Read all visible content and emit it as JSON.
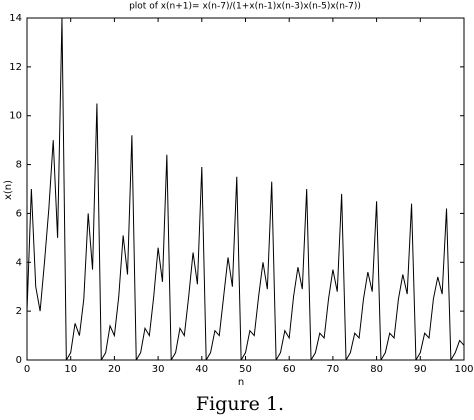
{
  "chart_data": {
    "type": "line",
    "title": "plot of x(n+1)= x(n-7)/(1+x(n-1)x(n-3)x(n-5)x(n-7))",
    "xlabel": "n",
    "ylabel": "x(n)",
    "caption": "Figure 1.",
    "x": [
      0,
      1,
      2,
      3,
      4,
      5,
      6,
      7,
      8,
      9,
      10,
      11,
      12,
      13,
      14,
      15,
      16,
      17,
      18,
      19,
      20,
      21,
      22,
      23,
      24,
      25,
      26,
      27,
      28,
      29,
      30,
      31,
      32,
      33,
      34,
      35,
      36,
      37,
      38,
      39,
      40,
      41,
      42,
      43,
      44,
      45,
      46,
      47,
      48,
      49,
      50,
      51,
      52,
      53,
      54,
      55,
      56,
      57,
      58,
      59,
      60,
      61,
      62,
      63,
      64,
      65,
      66,
      67,
      68,
      69,
      70,
      71,
      72,
      73,
      74,
      75,
      76,
      77,
      78,
      79,
      80,
      81,
      82,
      83,
      84,
      85,
      86,
      87,
      88,
      89,
      90,
      91,
      92,
      93,
      94,
      95,
      96,
      97,
      98,
      99,
      100
    ],
    "values": [
      2,
      7,
      3,
      2,
      4,
      6.2,
      9,
      5,
      14,
      0,
      0.3,
      1.5,
      1.0,
      2.5,
      6.0,
      3.7,
      10.5,
      0,
      0.3,
      1.4,
      1.0,
      2.6,
      5.1,
      3.5,
      9.2,
      0,
      0.3,
      1.3,
      1.0,
      2.6,
      4.6,
      3.2,
      8.4,
      0,
      0.3,
      1.3,
      1.0,
      2.6,
      4.4,
      3.1,
      7.9,
      0,
      0.3,
      1.2,
      1.0,
      2.6,
      4.2,
      3.0,
      7.5,
      0,
      0.3,
      1.2,
      1.0,
      2.6,
      4.0,
      2.9,
      7.3,
      0,
      0.3,
      1.2,
      0.9,
      2.6,
      3.8,
      2.9,
      7.0,
      0,
      0.3,
      1.1,
      0.9,
      2.5,
      3.7,
      2.8,
      6.8,
      0,
      0.3,
      1.1,
      0.9,
      2.5,
      3.6,
      2.8,
      6.5,
      0,
      0.3,
      1.1,
      0.9,
      2.5,
      3.5,
      2.7,
      6.4,
      0,
      0.3,
      1.1,
      0.9,
      2.5,
      3.4,
      2.7,
      6.2,
      0,
      0.3,
      0.8,
      0.6
    ],
    "color": "#000000",
    "xlim": [
      0,
      100
    ],
    "xticks": [
      0,
      10,
      20,
      30,
      40,
      50,
      60,
      70,
      80,
      90,
      100
    ],
    "ylim": [
      0,
      14
    ],
    "yticks": [
      0,
      2,
      4,
      6,
      8,
      10,
      12,
      14
    ],
    "grid": false
  }
}
